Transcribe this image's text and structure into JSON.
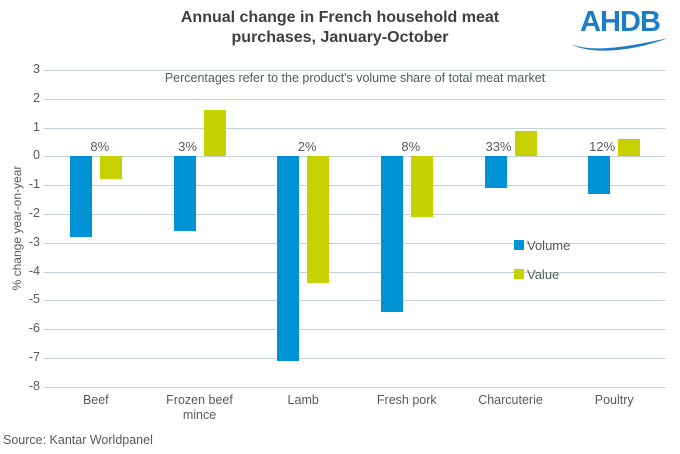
{
  "header": {
    "title_line1": "Annual change in French household meat",
    "title_line2": "purchases, January-October",
    "logo_text": "AHDB",
    "logo_color": "#1b7ec4"
  },
  "subtitle": "Percentages refer to the product's volume share of total meat market",
  "chart_data": {
    "type": "bar",
    "categories": [
      "Beef",
      "Frozen beef mince",
      "Lamb",
      "Fresh pork",
      "Charcuterie",
      "Poultry"
    ],
    "series": [
      {
        "name": "Volume",
        "color": "#0093d5",
        "values": [
          -2.8,
          -2.6,
          -7.1,
          -5.4,
          -1.1,
          -1.3
        ]
      },
      {
        "name": "Value",
        "color": "#c5d200",
        "values": [
          -0.8,
          1.6,
          -4.4,
          -2.1,
          0.9,
          0.6
        ]
      }
    ],
    "share_labels": [
      "8%",
      "3%",
      "2%",
      "8%",
      "33%",
      "12%"
    ],
    "ylabel": "% change year-on-year",
    "ylim": [
      -8,
      3
    ],
    "ytick_step": 1,
    "grid": true,
    "gridline_color": "#c3d2dd",
    "legend_position": "middle-right"
  },
  "source": "Source: Kantar Worldpanel"
}
